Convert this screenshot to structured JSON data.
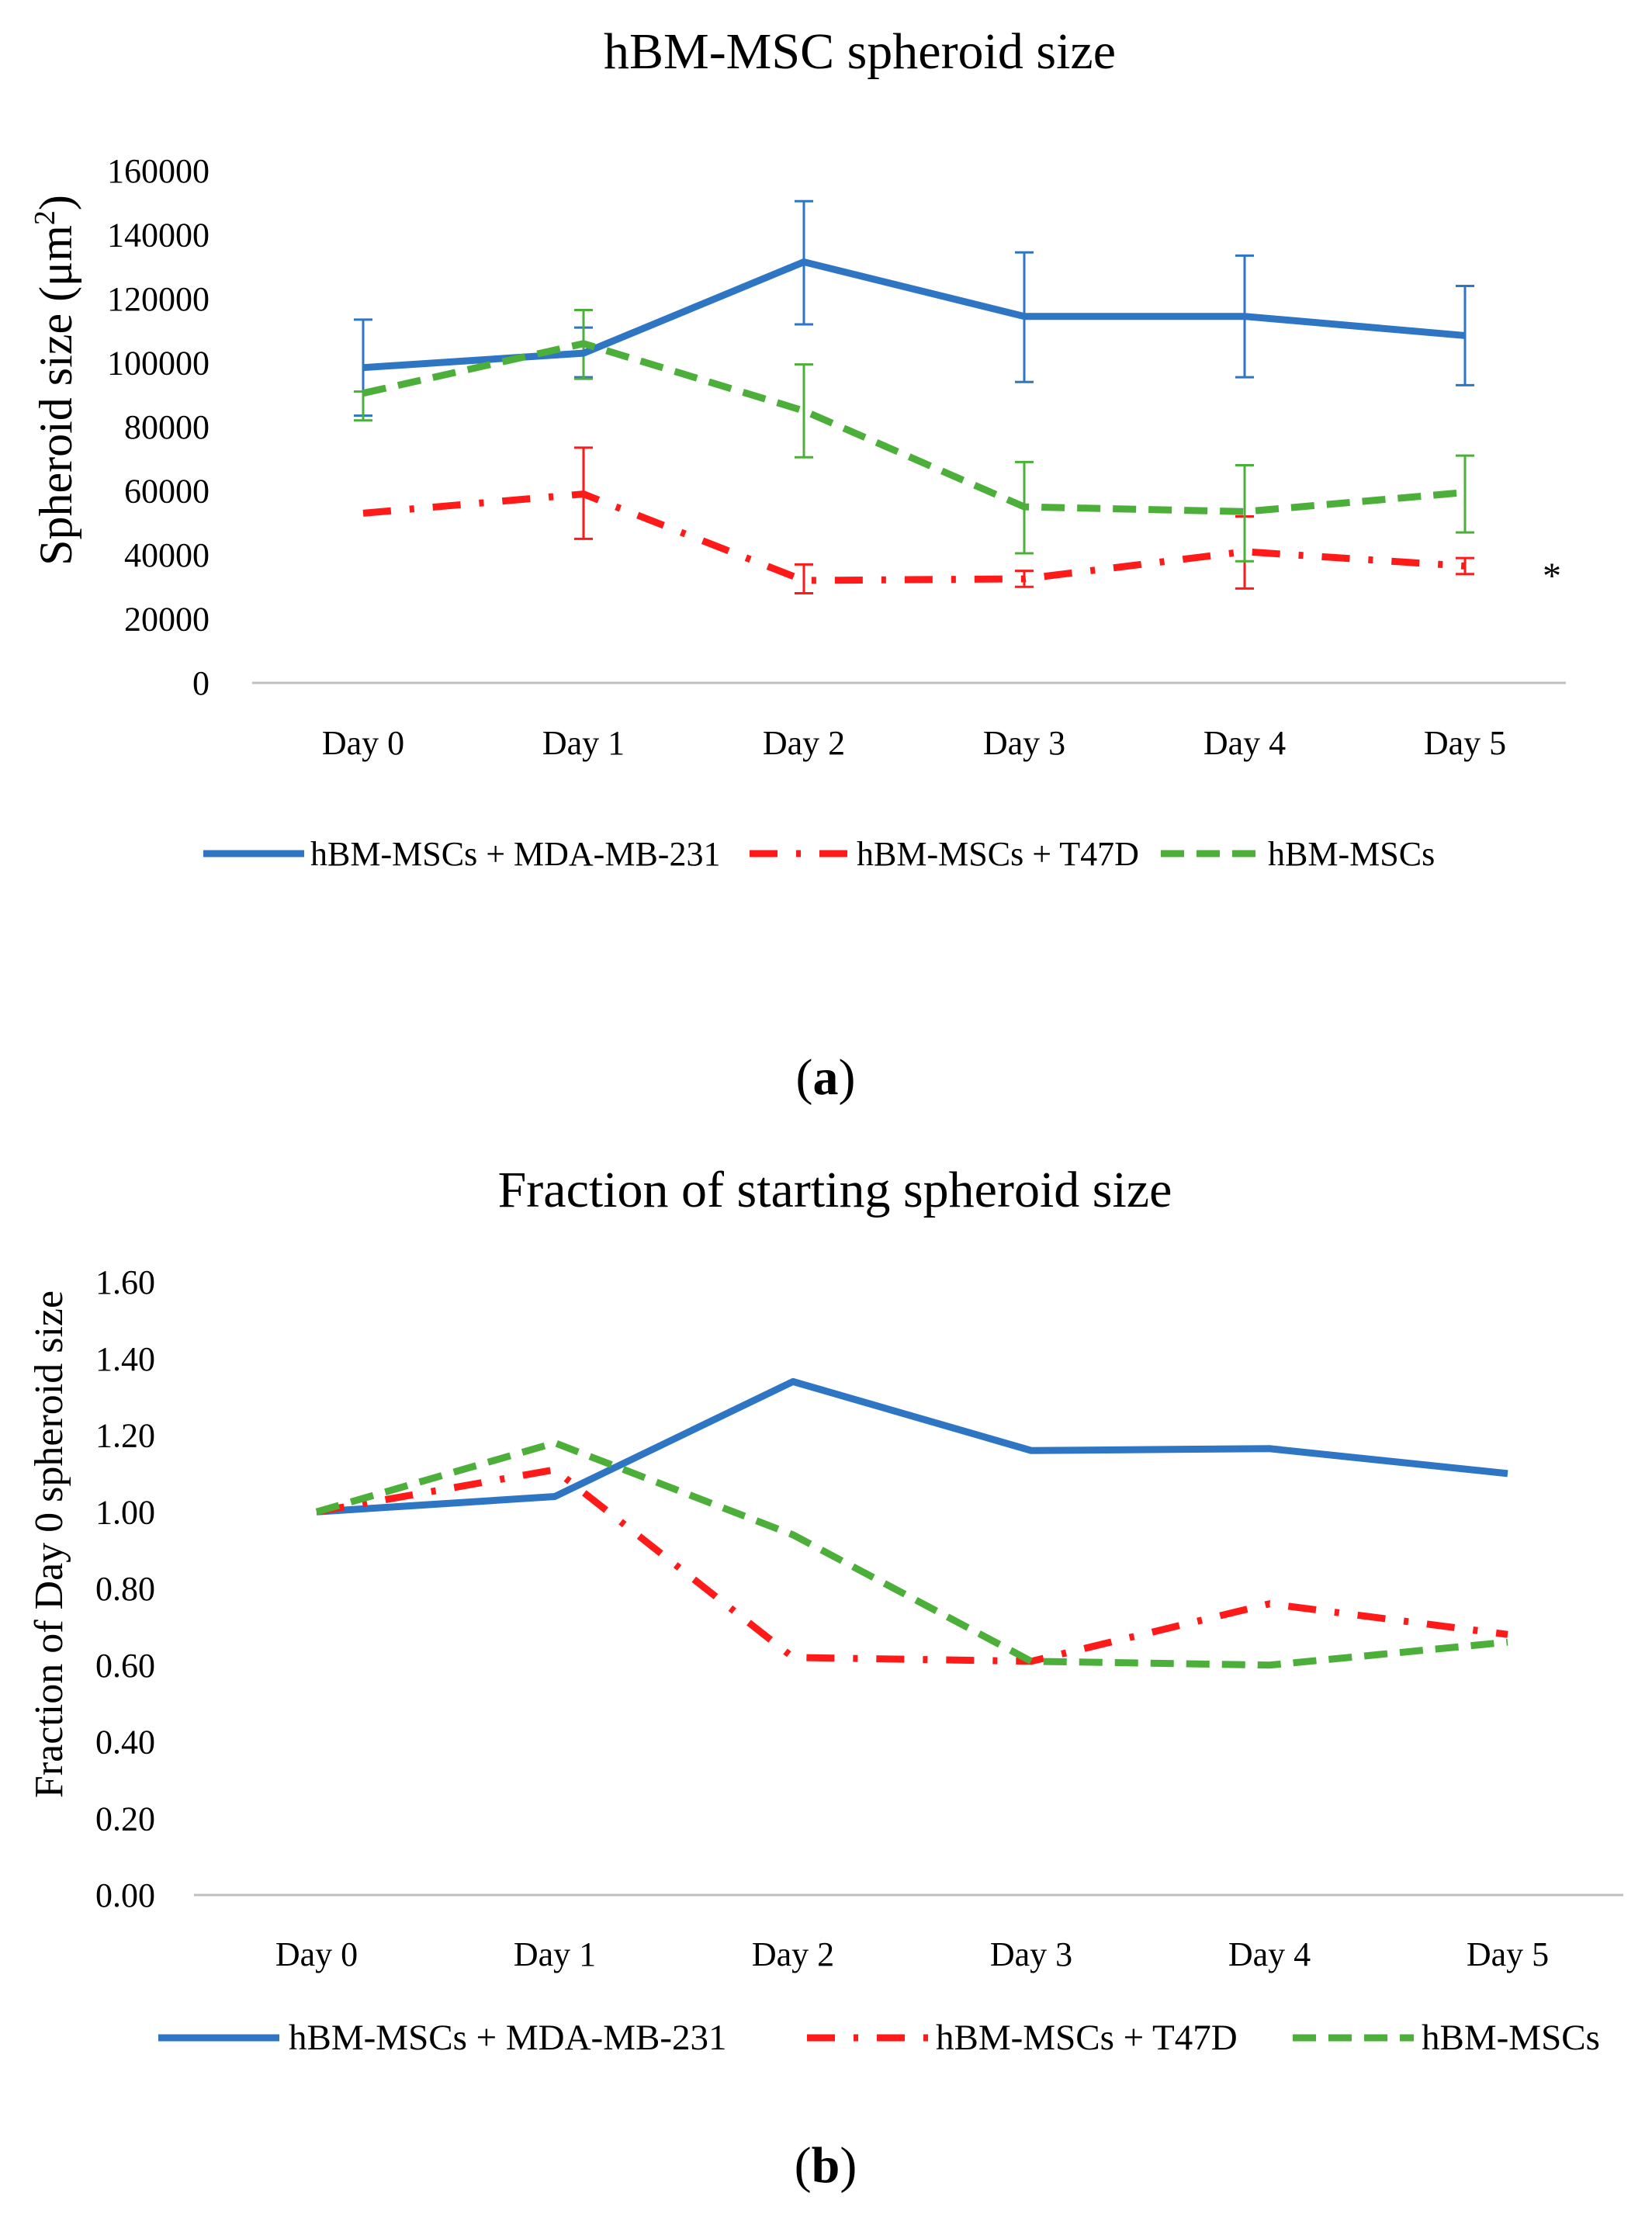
{
  "chart_data": [
    {
      "type": "line",
      "panel_label": "a",
      "title": "hBM-MSC spheroid size",
      "xlabel": "",
      "ylabel": "Spheroid size (μm",
      "ylabel_superscript": "2",
      "ylabel_close": ")",
      "categories": [
        "Day 0",
        "Day 1",
        "Day 2",
        "Day 3",
        "Day 4",
        "Day 5"
      ],
      "ylim": [
        0,
        160000
      ],
      "yticks": [
        "0",
        "20000",
        "40000",
        "60000",
        "80000",
        "100000",
        "120000",
        "140000",
        "160000"
      ],
      "grid": false,
      "legend_position": "bottom",
      "annotation": "*",
      "series": [
        {
          "name": "hBM-MSCs + MDA-MB-231",
          "color": "#2e75c3",
          "style": "solid",
          "values": [
            98500,
            103000,
            131500,
            114500,
            114500,
            108500
          ],
          "error_low": [
            83500,
            95500,
            112000,
            94000,
            95500,
            93000
          ],
          "error_high": [
            113500,
            111000,
            150500,
            134500,
            133500,
            124000
          ]
        },
        {
          "name": "hBM-MSCs + T47D",
          "color": "#ff1a1a",
          "style": "dashdot",
          "values": [
            53000,
            59000,
            32000,
            32500,
            41000,
            36500
          ],
          "error_low": null,
          "error_high": [
            null,
            73500,
            37000,
            35000,
            52000,
            39000
          ],
          "error_low_values": [
            null,
            45000,
            28000,
            30000,
            29500,
            34000
          ]
        },
        {
          "name": "hBM-MSCs",
          "color": "#4caf3a",
          "style": "dashed",
          "values": [
            90500,
            106000,
            85000,
            55000,
            53500,
            59500
          ],
          "error_low": [
            82000,
            95000,
            70500,
            40500,
            38000,
            47000
          ],
          "error_high": [
            91000,
            116500,
            99500,
            69000,
            68000,
            71000
          ]
        }
      ]
    },
    {
      "type": "line",
      "panel_label": "b",
      "title": "Fraction of starting spheroid size",
      "xlabel": "",
      "ylabel": "Fraction of Day 0 spheroid size",
      "categories": [
        "Day 0",
        "Day 1",
        "Day 2",
        "Day 3",
        "Day 4",
        "Day 5"
      ],
      "ylim": [
        0,
        1.6
      ],
      "yticks": [
        "0.00",
        "0.20",
        "0.40",
        "0.60",
        "0.80",
        "1.00",
        "1.20",
        "1.40",
        "1.60"
      ],
      "grid": false,
      "legend_position": "bottom",
      "series": [
        {
          "name": "hBM-MSCs + MDA-MB-231",
          "color": "#2e75c3",
          "style": "solid",
          "values": [
            1.0,
            1.04,
            1.34,
            1.16,
            1.165,
            1.1
          ]
        },
        {
          "name": "hBM-MSCs + T47D",
          "color": "#ff1a1a",
          "style": "dashdot",
          "values": [
            1.0,
            1.11,
            0.62,
            0.61,
            0.76,
            0.68
          ]
        },
        {
          "name": "hBM-MSCs",
          "color": "#4caf3a",
          "style": "dashed",
          "values": [
            1.0,
            1.18,
            0.94,
            0.61,
            0.6,
            0.66
          ]
        }
      ]
    }
  ]
}
